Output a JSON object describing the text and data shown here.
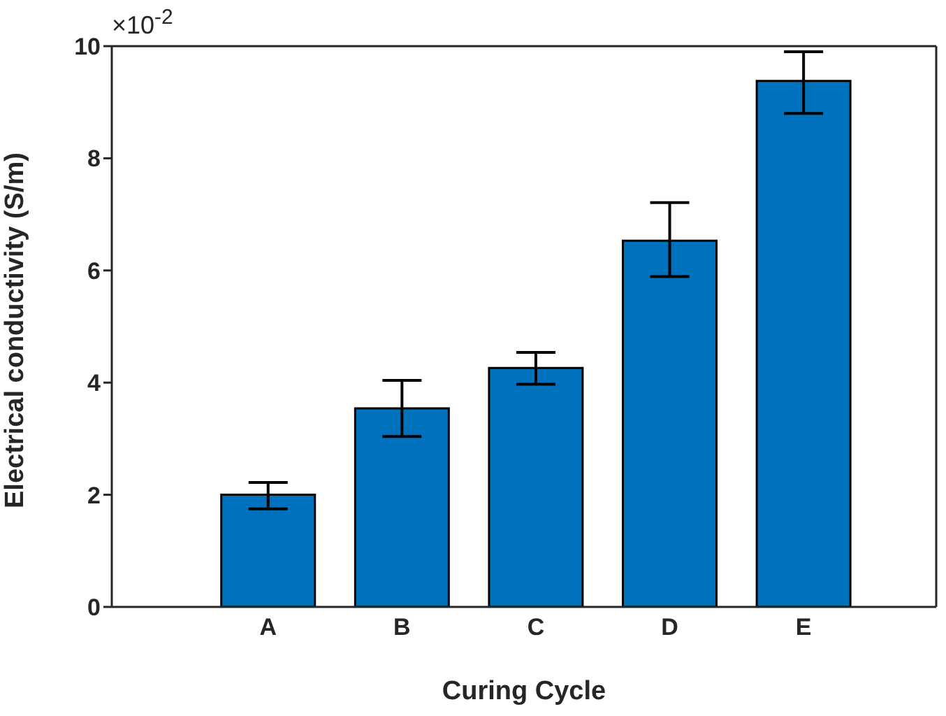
{
  "chart_data": {
    "type": "bar",
    "xlabel": "Curing Cycle",
    "ylabel": "Electrical conductivity (S/m)",
    "annotations": [
      "×10$^{-2}$"
    ],
    "categories": [
      "A",
      "B",
      "C",
      "D",
      "E"
    ],
    "values": [
      2.0,
      3.54,
      4.26,
      6.53,
      9.38
    ],
    "errors": [
      [
        1.75,
        2.22
      ],
      [
        3.04,
        4.04
      ],
      [
        3.97,
        4.54
      ],
      [
        5.89,
        7.21
      ],
      [
        8.8,
        9.9
      ]
    ],
    "color": "#0072bd",
    "ylim": [
      0,
      10
    ],
    "yticks": [
      0,
      2,
      4,
      6,
      8,
      10
    ],
    "grid": false,
    "legend": false
  }
}
